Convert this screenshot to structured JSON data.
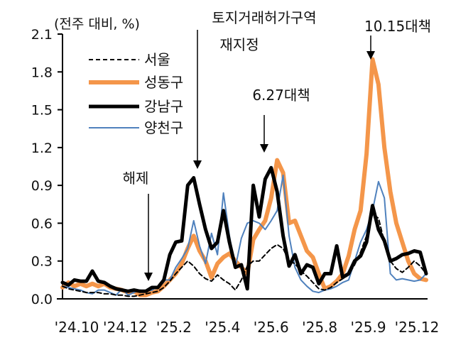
{
  "chart_data": {
    "type": "line",
    "unit_label": "(전주 대비, %)",
    "xlabel": "",
    "ylabel": "",
    "ylim": [
      0,
      2.1
    ],
    "yticks": [
      "0.0",
      "0.3",
      "0.6",
      "0.9",
      "1.2",
      "1.5",
      "1.8",
      "2.1"
    ],
    "xticks": [
      "'24.10",
      "'24.12",
      "'25.2",
      "'25.4",
      "'25.6",
      "'25.8",
      "'25.9",
      "'25.12"
    ],
    "grid": false,
    "legend_position": "top-left",
    "series": [
      {
        "name": "서울",
        "color": "#000000",
        "style": "dashed",
        "values": [
          0.1,
          0.08,
          0.07,
          0.06,
          0.05,
          0.05,
          0.05,
          0.04,
          0.04,
          0.03,
          0.03,
          0.02,
          0.02,
          0.03,
          0.04,
          0.05,
          0.06,
          0.09,
          0.14,
          0.2,
          0.25,
          0.3,
          0.26,
          0.2,
          0.16,
          0.14,
          0.19,
          0.15,
          0.12,
          0.07,
          0.15,
          0.26,
          0.3,
          0.3,
          0.35,
          0.4,
          0.43,
          0.4,
          0.3,
          0.28,
          0.22,
          0.18,
          0.13,
          0.08,
          0.07,
          0.09,
          0.13,
          0.16,
          0.19,
          0.27,
          0.37,
          0.5,
          0.67,
          0.64,
          0.45,
          0.3,
          0.24,
          0.21,
          0.25,
          0.3,
          0.26,
          0.2
        ]
      },
      {
        "name": "성동구",
        "color": "#F4964A",
        "style": "solid",
        "values": [
          0.09,
          0.13,
          0.1,
          0.12,
          0.1,
          0.12,
          0.1,
          0.12,
          0.09,
          0.08,
          0.07,
          0.05,
          0.06,
          0.03,
          0.03,
          0.05,
          0.06,
          0.1,
          0.15,
          0.2,
          0.28,
          0.4,
          0.5,
          0.38,
          0.3,
          0.17,
          0.28,
          0.33,
          0.36,
          0.3,
          0.25,
          0.2,
          0.47,
          0.55,
          0.62,
          0.8,
          1.1,
          1.0,
          0.6,
          0.62,
          0.5,
          0.38,
          0.33,
          0.2,
          0.08,
          0.1,
          0.14,
          0.2,
          0.34,
          0.55,
          0.7,
          1.15,
          1.9,
          1.7,
          1.2,
          0.85,
          0.6,
          0.45,
          0.3,
          0.2,
          0.16,
          0.15
        ]
      },
      {
        "name": "강남구",
        "color": "#000000",
        "style": "solid",
        "values": [
          0.13,
          0.11,
          0.15,
          0.14,
          0.14,
          0.22,
          0.14,
          0.13,
          0.1,
          0.08,
          0.07,
          0.06,
          0.07,
          0.06,
          0.06,
          0.09,
          0.09,
          0.15,
          0.35,
          0.45,
          0.46,
          0.9,
          0.96,
          0.75,
          0.55,
          0.4,
          0.45,
          0.7,
          0.45,
          0.25,
          0.27,
          0.08,
          0.9,
          0.65,
          0.95,
          1.04,
          0.85,
          0.5,
          0.26,
          0.35,
          0.2,
          0.27,
          0.25,
          0.12,
          0.2,
          0.2,
          0.42,
          0.17,
          0.2,
          0.3,
          0.34,
          0.45,
          0.74,
          0.55,
          0.46,
          0.3,
          0.32,
          0.35,
          0.36,
          0.38,
          0.37,
          0.2
        ]
      },
      {
        "name": "양천구",
        "color": "#4F81BD",
        "style": "solid",
        "values": [
          0.1,
          0.09,
          0.08,
          0.07,
          0.05,
          0.04,
          0.07,
          0.07,
          0.05,
          0.03,
          0.08,
          0.03,
          0.05,
          0.07,
          0.06,
          0.07,
          0.1,
          0.15,
          0.15,
          0.25,
          0.32,
          0.4,
          0.62,
          0.42,
          0.28,
          0.52,
          0.35,
          0.84,
          0.5,
          0.25,
          0.48,
          0.6,
          0.62,
          0.6,
          0.55,
          0.62,
          0.7,
          0.98,
          0.5,
          0.25,
          0.15,
          0.1,
          0.06,
          0.05,
          0.07,
          0.08,
          0.1,
          0.13,
          0.15,
          0.3,
          0.45,
          0.55,
          0.7,
          0.93,
          0.8,
          0.2,
          0.15,
          0.16,
          0.15,
          0.14,
          0.15,
          0.2
        ]
      }
    ],
    "annotations": [
      {
        "text": "해제",
        "at_index": 15
      },
      {
        "text": "토지거래허가구역",
        "text2": "재지정",
        "at_index": 22
      },
      {
        "text": "6.27대책",
        "at_index": 34
      },
      {
        "text": "10.15대책",
        "at_index": 52
      }
    ]
  }
}
